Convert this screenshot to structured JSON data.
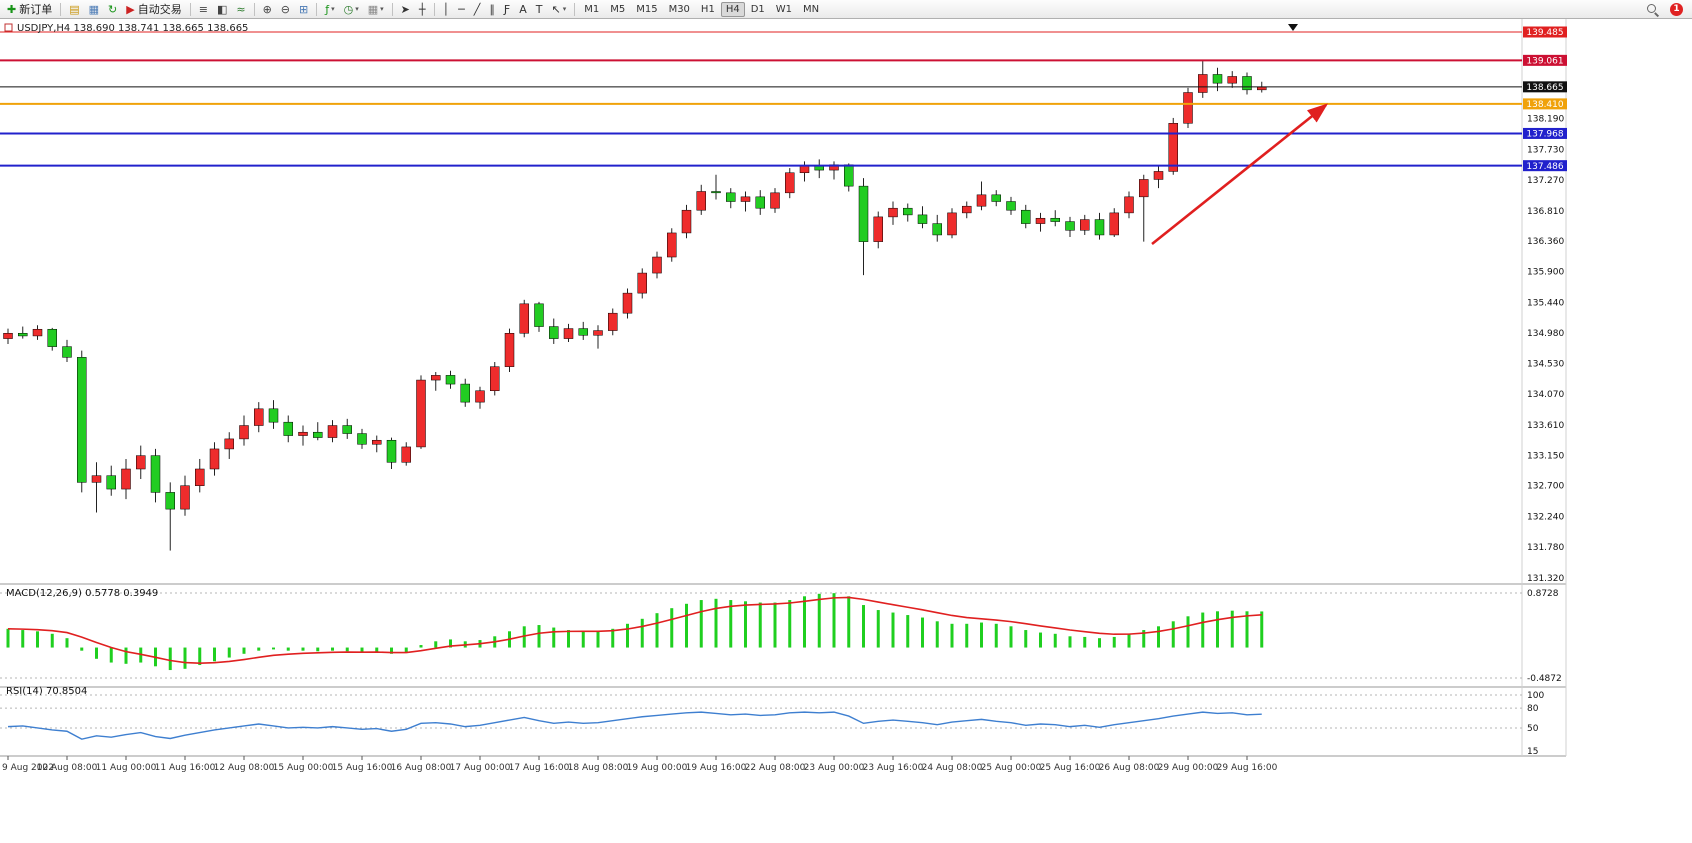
{
  "toolbar": {
    "groups": [
      {
        "buttons": [
          {
            "id": "new-order",
            "icon": "✚",
            "icon_color": "#189418",
            "label": "新订单"
          }
        ]
      },
      {
        "buttons": [
          {
            "id": "charts-list",
            "icon": "▤",
            "icon_color": "#c8940a"
          },
          {
            "id": "data-window",
            "icon": "▦",
            "icon_color": "#4a7ab5"
          },
          {
            "id": "refresh",
            "icon": "↻",
            "icon_color": "#189418"
          },
          {
            "id": "auto-trading",
            "icon": "▶",
            "icon_color": "#cc2222",
            "label": "自动交易"
          }
        ]
      },
      {
        "buttons": [
          {
            "id": "chart-bars",
            "icon": "≡",
            "icon_color": "#444444"
          },
          {
            "id": "chart-candles",
            "icon": "◧",
            "icon_color": "#444444"
          },
          {
            "id": "chart-line",
            "icon": "≈",
            "icon_color": "#2a7a2a"
          }
        ]
      },
      {
        "buttons": [
          {
            "id": "zoom-in",
            "icon": "⊕",
            "icon_color": "#444444"
          },
          {
            "id": "zoom-out",
            "icon": "⊖",
            "icon_color": "#444444"
          },
          {
            "id": "tile-windows",
            "icon": "⊞",
            "icon_color": "#4a7ab5"
          }
        ]
      },
      {
        "buttons": [
          {
            "id": "indicators",
            "icon": "ƒ",
            "icon_color": "#189418",
            "dropdown": true
          },
          {
            "id": "periods",
            "icon": "◷",
            "icon_color": "#2a7a2a",
            "dropdown": true
          },
          {
            "id": "templates",
            "icon": "▦",
            "icon_color": "#888888",
            "dropdown": true
          }
        ]
      },
      {
        "buttons": [
          {
            "id": "cursor",
            "icon": "➤",
            "icon_color": "#333333"
          },
          {
            "id": "crosshair",
            "icon": "┼",
            "icon_color": "#333333"
          }
        ]
      },
      {
        "buttons": [
          {
            "id": "vertical-line",
            "icon": "│",
            "icon_color": "#333333"
          },
          {
            "id": "horizontal-line",
            "icon": "─",
            "icon_color": "#333333"
          },
          {
            "id": "trendline",
            "icon": "╱",
            "icon_color": "#333333"
          },
          {
            "id": "channel",
            "icon": "∥",
            "icon_color": "#333333"
          },
          {
            "id": "fibonacci",
            "icon": "Ƒ",
            "icon_color": "#333333"
          },
          {
            "id": "text",
            "icon": "A",
            "icon_color": "#333333"
          },
          {
            "id": "text-label",
            "icon": "T",
            "icon_color": "#333333"
          },
          {
            "id": "arrows",
            "icon": "↖",
            "icon_color": "#333333",
            "dropdown": true
          }
        ]
      }
    ],
    "timeframes": [
      "M1",
      "M5",
      "M15",
      "M30",
      "H1",
      "H4",
      "D1",
      "W1",
      "MN"
    ],
    "active_timeframe": "H4",
    "notification_count": "1"
  },
  "chart": {
    "symbol_title": "USDJPY,H4  138.690 138.741 138.665 138.665",
    "up_color": "#EE2C2C",
    "down_color": "#22CC22",
    "arrow_color": "#E01F1F",
    "levels": [
      {
        "value": "139.485",
        "color": "#E02020",
        "width": 1
      },
      {
        "value": "139.061",
        "color": "#CC1033",
        "width": 2
      },
      {
        "value": "138.665",
        "color": "#111111",
        "width": 1,
        "role": "current-price"
      },
      {
        "value": "138.410",
        "color": "#F0A20A",
        "width": 2
      },
      {
        "value": "137.968",
        "color": "#2121CC",
        "width": 2
      },
      {
        "value": "137.486",
        "color": "#2121CC",
        "width": 2
      }
    ],
    "y_ticks": [
      "138.190",
      "137.730",
      "137.270",
      "136.810",
      "136.360",
      "135.900",
      "135.440",
      "134.980",
      "134.530",
      "134.070",
      "133.610",
      "133.150",
      "132.700",
      "132.240",
      "131.780",
      "131.320"
    ]
  },
  "chart_data": {
    "type": "candlestick",
    "symbol": "USDJPY",
    "timeframe": "H4",
    "ohlc": {
      "open": "138.690",
      "high": "138.741",
      "low": "138.665",
      "close": "138.665"
    },
    "x_labels": [
      "9 Aug 2022",
      "10 Aug 08:00",
      "11 Aug 00:00",
      "11 Aug 16:00",
      "12 Aug 08:00",
      "15 Aug 00:00",
      "15 Aug 16:00",
      "16 Aug 08:00",
      "17 Aug 00:00",
      "17 Aug 16:00",
      "18 Aug 08:00",
      "19 Aug 00:00",
      "19 Aug 16:00",
      "22 Aug 08:00",
      "23 Aug 00:00",
      "23 Aug 16:00",
      "24 Aug 08:00",
      "25 Aug 00:00",
      "25 Aug 16:00",
      "26 Aug 08:00",
      "29 Aug 00:00",
      "29 Aug 16:00"
    ],
    "candles": [
      [
        134.9,
        135.05,
        134.82,
        134.98
      ],
      [
        134.98,
        135.08,
        134.9,
        134.94
      ],
      [
        134.94,
        135.1,
        134.88,
        135.04
      ],
      [
        135.04,
        135.06,
        134.72,
        134.78
      ],
      [
        134.78,
        134.88,
        134.55,
        134.62
      ],
      [
        134.62,
        134.72,
        132.6,
        132.75
      ],
      [
        132.75,
        133.05,
        132.3,
        132.85
      ],
      [
        132.85,
        133.0,
        132.55,
        132.65
      ],
      [
        132.65,
        133.1,
        132.5,
        132.95
      ],
      [
        132.95,
        133.3,
        132.8,
        133.15
      ],
      [
        133.15,
        133.25,
        132.45,
        132.6
      ],
      [
        132.6,
        132.75,
        131.73,
        132.35
      ],
      [
        132.35,
        132.85,
        132.25,
        132.7
      ],
      [
        132.7,
        133.1,
        132.6,
        132.95
      ],
      [
        132.95,
        133.35,
        132.85,
        133.25
      ],
      [
        133.25,
        133.5,
        133.1,
        133.4
      ],
      [
        133.4,
        133.75,
        133.3,
        133.6
      ],
      [
        133.6,
        133.95,
        133.5,
        133.85
      ],
      [
        133.85,
        133.98,
        133.55,
        133.65
      ],
      [
        133.65,
        133.75,
        133.35,
        133.45
      ],
      [
        133.45,
        133.6,
        133.3,
        133.5
      ],
      [
        133.5,
        133.65,
        133.38,
        133.42
      ],
      [
        133.42,
        133.68,
        133.35,
        133.6
      ],
      [
        133.6,
        133.7,
        133.4,
        133.48
      ],
      [
        133.48,
        133.55,
        133.25,
        133.32
      ],
      [
        133.32,
        133.45,
        133.2,
        133.38
      ],
      [
        133.38,
        133.42,
        132.95,
        133.05
      ],
      [
        133.05,
        133.35,
        133.0,
        133.28
      ],
      [
        133.28,
        134.35,
        133.25,
        134.28
      ],
      [
        134.28,
        134.4,
        134.12,
        134.35
      ],
      [
        134.35,
        134.42,
        134.15,
        134.22
      ],
      [
        134.22,
        134.3,
        133.88,
        133.95
      ],
      [
        133.95,
        134.18,
        133.85,
        134.12
      ],
      [
        134.12,
        134.55,
        134.05,
        134.48
      ],
      [
        134.48,
        135.05,
        134.4,
        134.98
      ],
      [
        134.98,
        135.48,
        134.92,
        135.42
      ],
      [
        135.42,
        135.45,
        135.0,
        135.08
      ],
      [
        135.08,
        135.2,
        134.82,
        134.9
      ],
      [
        134.9,
        135.12,
        134.85,
        135.05
      ],
      [
        135.05,
        135.15,
        134.88,
        134.95
      ],
      [
        134.95,
        135.1,
        134.75,
        135.02
      ],
      [
        135.02,
        135.35,
        134.95,
        135.28
      ],
      [
        135.28,
        135.65,
        135.2,
        135.58
      ],
      [
        135.58,
        135.95,
        135.5,
        135.88
      ],
      [
        135.88,
        136.2,
        135.8,
        136.12
      ],
      [
        136.12,
        136.55,
        136.05,
        136.48
      ],
      [
        136.48,
        136.9,
        136.4,
        136.82
      ],
      [
        136.82,
        137.2,
        136.75,
        137.1
      ],
      [
        137.1,
        137.35,
        136.98,
        137.08
      ],
      [
        137.08,
        137.15,
        136.85,
        136.95
      ],
      [
        136.95,
        137.1,
        136.8,
        137.02
      ],
      [
        137.02,
        137.12,
        136.75,
        136.85
      ],
      [
        136.85,
        137.15,
        136.78,
        137.08
      ],
      [
        137.08,
        137.45,
        137.0,
        137.38
      ],
      [
        137.38,
        137.55,
        137.25,
        137.48
      ],
      [
        137.48,
        137.58,
        137.3,
        137.42
      ],
      [
        137.42,
        137.55,
        137.28,
        137.5
      ],
      [
        137.5,
        137.52,
        137.1,
        137.18
      ],
      [
        137.18,
        137.3,
        135.85,
        136.35
      ],
      [
        136.35,
        136.8,
        136.25,
        136.72
      ],
      [
        136.72,
        136.95,
        136.6,
        136.85
      ],
      [
        136.85,
        136.92,
        136.65,
        136.75
      ],
      [
        136.75,
        136.88,
        136.55,
        136.62
      ],
      [
        136.62,
        136.75,
        136.35,
        136.45
      ],
      [
        136.45,
        136.85,
        136.4,
        136.78
      ],
      [
        136.78,
        136.95,
        136.7,
        136.88
      ],
      [
        136.88,
        137.25,
        136.82,
        137.05
      ],
      [
        137.05,
        137.12,
        136.88,
        136.95
      ],
      [
        136.95,
        137.02,
        136.75,
        136.82
      ],
      [
        136.82,
        136.9,
        136.55,
        136.62
      ],
      [
        136.62,
        136.78,
        136.5,
        136.7
      ],
      [
        136.7,
        136.82,
        136.58,
        136.65
      ],
      [
        136.65,
        136.72,
        136.42,
        136.52
      ],
      [
        136.52,
        136.75,
        136.45,
        136.68
      ],
      [
        136.68,
        136.78,
        136.38,
        136.45
      ],
      [
        136.45,
        136.85,
        136.42,
        136.78
      ],
      [
        136.78,
        137.1,
        136.7,
        137.02
      ],
      [
        137.02,
        137.35,
        136.35,
        137.28
      ],
      [
        137.28,
        137.48,
        137.15,
        137.4
      ],
      [
        137.4,
        138.2,
        137.35,
        138.12
      ],
      [
        138.12,
        138.65,
        138.05,
        138.58
      ],
      [
        138.58,
        139.05,
        138.5,
        138.85
      ],
      [
        138.85,
        138.95,
        138.6,
        138.72
      ],
      [
        138.72,
        138.9,
        138.65,
        138.82
      ],
      [
        138.82,
        138.88,
        138.55,
        138.62
      ],
      [
        138.62,
        138.741,
        138.58,
        138.665
      ]
    ],
    "macd": {
      "title": "MACD(12,26,9)",
      "main_value": "0.5778",
      "signal_value": "0.3949",
      "axis_max": "0.8728",
      "axis_min": "-0.4872",
      "hist_color": "#1FCF1F",
      "signal_color": "#E02020",
      "histogram": [
        0.3,
        0.28,
        0.26,
        0.22,
        0.15,
        -0.05,
        -0.18,
        -0.24,
        -0.26,
        -0.24,
        -0.3,
        -0.36,
        -0.34,
        -0.28,
        -0.22,
        -0.16,
        -0.1,
        -0.05,
        -0.03,
        -0.05,
        -0.05,
        -0.06,
        -0.05,
        -0.06,
        -0.08,
        -0.07,
        -0.1,
        -0.08,
        0.04,
        0.1,
        0.13,
        0.1,
        0.12,
        0.18,
        0.26,
        0.34,
        0.36,
        0.32,
        0.28,
        0.26,
        0.26,
        0.3,
        0.38,
        0.46,
        0.55,
        0.63,
        0.7,
        0.76,
        0.78,
        0.76,
        0.74,
        0.72,
        0.72,
        0.76,
        0.82,
        0.86,
        0.87,
        0.82,
        0.68,
        0.6,
        0.56,
        0.52,
        0.48,
        0.42,
        0.38,
        0.38,
        0.4,
        0.38,
        0.34,
        0.28,
        0.24,
        0.22,
        0.18,
        0.17,
        0.15,
        0.17,
        0.22,
        0.28,
        0.34,
        0.42,
        0.5,
        0.56,
        0.58,
        0.59,
        0.58,
        0.5778
      ]
    },
    "rsi": {
      "title": "RSI(14)",
      "value": "70.8504",
      "line_color": "#3E7FD0",
      "levels": [
        "100",
        "80",
        "50",
        "15"
      ],
      "series": [
        52,
        53,
        50,
        47,
        45,
        33,
        38,
        36,
        40,
        43,
        37,
        34,
        39,
        43,
        47,
        50,
        53,
        56,
        53,
        50,
        51,
        50,
        52,
        50,
        48,
        49,
        45,
        48,
        57,
        58,
        56,
        52,
        54,
        58,
        62,
        66,
        61,
        57,
        59,
        57,
        58,
        61,
        64,
        67,
        69,
        71,
        73,
        74,
        72,
        70,
        71,
        69,
        70,
        73,
        74,
        73,
        74,
        68,
        57,
        60,
        62,
        60,
        58,
        55,
        59,
        61,
        63,
        60,
        58,
        54,
        56,
        55,
        52,
        54,
        51,
        55,
        58,
        61,
        64,
        68,
        71,
        74,
        72,
        73,
        70,
        70.85
      ]
    }
  }
}
